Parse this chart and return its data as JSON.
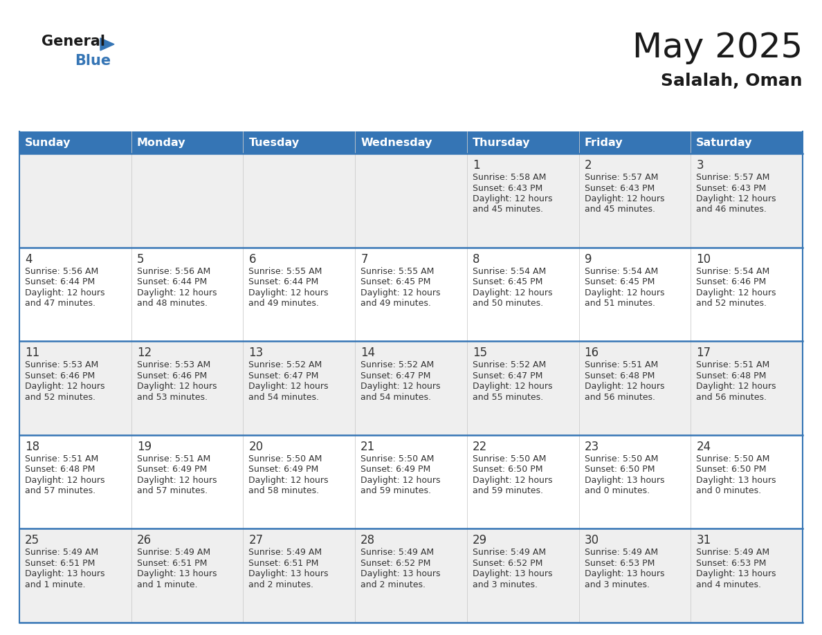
{
  "title": "May 2025",
  "subtitle": "Salalah, Oman",
  "header_bg": "#3575b5",
  "header_text": "#ffffff",
  "cell_bg_odd": "#efefef",
  "cell_bg_even": "#ffffff",
  "grid_line_color": "#3575b5",
  "text_color": "#333333",
  "day_names": [
    "Sunday",
    "Monday",
    "Tuesday",
    "Wednesday",
    "Thursday",
    "Friday",
    "Saturday"
  ],
  "logo_general_color": "#1a1a1a",
  "logo_blue_color": "#3575b5",
  "title_color": "#1a1a1a",
  "subtitle_color": "#1a1a1a",
  "weeks": [
    {
      "days": [
        {
          "day": "",
          "sunrise": "",
          "sunset": "",
          "daylight": ""
        },
        {
          "day": "",
          "sunrise": "",
          "sunset": "",
          "daylight": ""
        },
        {
          "day": "",
          "sunrise": "",
          "sunset": "",
          "daylight": ""
        },
        {
          "day": "",
          "sunrise": "",
          "sunset": "",
          "daylight": ""
        },
        {
          "day": "1",
          "sunrise": "5:58 AM",
          "sunset": "6:43 PM",
          "daylight": "12 hours\nand 45 minutes."
        },
        {
          "day": "2",
          "sunrise": "5:57 AM",
          "sunset": "6:43 PM",
          "daylight": "12 hours\nand 45 minutes."
        },
        {
          "day": "3",
          "sunrise": "5:57 AM",
          "sunset": "6:43 PM",
          "daylight": "12 hours\nand 46 minutes."
        }
      ]
    },
    {
      "days": [
        {
          "day": "4",
          "sunrise": "5:56 AM",
          "sunset": "6:44 PM",
          "daylight": "12 hours\nand 47 minutes."
        },
        {
          "day": "5",
          "sunrise": "5:56 AM",
          "sunset": "6:44 PM",
          "daylight": "12 hours\nand 48 minutes."
        },
        {
          "day": "6",
          "sunrise": "5:55 AM",
          "sunset": "6:44 PM",
          "daylight": "12 hours\nand 49 minutes."
        },
        {
          "day": "7",
          "sunrise": "5:55 AM",
          "sunset": "6:45 PM",
          "daylight": "12 hours\nand 49 minutes."
        },
        {
          "day": "8",
          "sunrise": "5:54 AM",
          "sunset": "6:45 PM",
          "daylight": "12 hours\nand 50 minutes."
        },
        {
          "day": "9",
          "sunrise": "5:54 AM",
          "sunset": "6:45 PM",
          "daylight": "12 hours\nand 51 minutes."
        },
        {
          "day": "10",
          "sunrise": "5:54 AM",
          "sunset": "6:46 PM",
          "daylight": "12 hours\nand 52 minutes."
        }
      ]
    },
    {
      "days": [
        {
          "day": "11",
          "sunrise": "5:53 AM",
          "sunset": "6:46 PM",
          "daylight": "12 hours\nand 52 minutes."
        },
        {
          "day": "12",
          "sunrise": "5:53 AM",
          "sunset": "6:46 PM",
          "daylight": "12 hours\nand 53 minutes."
        },
        {
          "day": "13",
          "sunrise": "5:52 AM",
          "sunset": "6:47 PM",
          "daylight": "12 hours\nand 54 minutes."
        },
        {
          "day": "14",
          "sunrise": "5:52 AM",
          "sunset": "6:47 PM",
          "daylight": "12 hours\nand 54 minutes."
        },
        {
          "day": "15",
          "sunrise": "5:52 AM",
          "sunset": "6:47 PM",
          "daylight": "12 hours\nand 55 minutes."
        },
        {
          "day": "16",
          "sunrise": "5:51 AM",
          "sunset": "6:48 PM",
          "daylight": "12 hours\nand 56 minutes."
        },
        {
          "day": "17",
          "sunrise": "5:51 AM",
          "sunset": "6:48 PM",
          "daylight": "12 hours\nand 56 minutes."
        }
      ]
    },
    {
      "days": [
        {
          "day": "18",
          "sunrise": "5:51 AM",
          "sunset": "6:48 PM",
          "daylight": "12 hours\nand 57 minutes."
        },
        {
          "day": "19",
          "sunrise": "5:51 AM",
          "sunset": "6:49 PM",
          "daylight": "12 hours\nand 57 minutes."
        },
        {
          "day": "20",
          "sunrise": "5:50 AM",
          "sunset": "6:49 PM",
          "daylight": "12 hours\nand 58 minutes."
        },
        {
          "day": "21",
          "sunrise": "5:50 AM",
          "sunset": "6:49 PM",
          "daylight": "12 hours\nand 59 minutes."
        },
        {
          "day": "22",
          "sunrise": "5:50 AM",
          "sunset": "6:50 PM",
          "daylight": "12 hours\nand 59 minutes."
        },
        {
          "day": "23",
          "sunrise": "5:50 AM",
          "sunset": "6:50 PM",
          "daylight": "13 hours\nand 0 minutes."
        },
        {
          "day": "24",
          "sunrise": "5:50 AM",
          "sunset": "6:50 PM",
          "daylight": "13 hours\nand 0 minutes."
        }
      ]
    },
    {
      "days": [
        {
          "day": "25",
          "sunrise": "5:49 AM",
          "sunset": "6:51 PM",
          "daylight": "13 hours\nand 1 minute."
        },
        {
          "day": "26",
          "sunrise": "5:49 AM",
          "sunset": "6:51 PM",
          "daylight": "13 hours\nand 1 minute."
        },
        {
          "day": "27",
          "sunrise": "5:49 AM",
          "sunset": "6:51 PM",
          "daylight": "13 hours\nand 2 minutes."
        },
        {
          "day": "28",
          "sunrise": "5:49 AM",
          "sunset": "6:52 PM",
          "daylight": "13 hours\nand 2 minutes."
        },
        {
          "day": "29",
          "sunrise": "5:49 AM",
          "sunset": "6:52 PM",
          "daylight": "13 hours\nand 3 minutes."
        },
        {
          "day": "30",
          "sunrise": "5:49 AM",
          "sunset": "6:53 PM",
          "daylight": "13 hours\nand 3 minutes."
        },
        {
          "day": "31",
          "sunrise": "5:49 AM",
          "sunset": "6:53 PM",
          "daylight": "13 hours\nand 4 minutes."
        }
      ]
    }
  ]
}
